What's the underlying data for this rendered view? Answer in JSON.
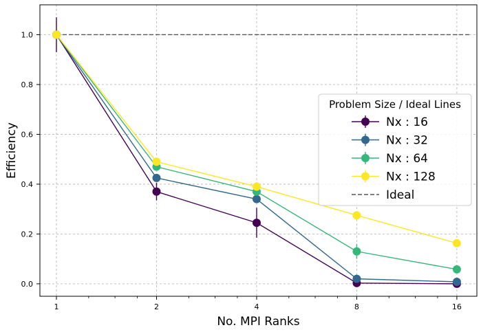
{
  "chart_data": {
    "type": "line",
    "xlabel": "No. MPI Ranks",
    "ylabel": "Efficiency",
    "x_scale": "log2",
    "x": [
      1,
      2,
      4,
      8,
      16
    ],
    "x_tick_labels": [
      "1",
      "2",
      "4",
      "8",
      "16"
    ],
    "ylim": [
      -0.05,
      1.12
    ],
    "y_ticks": [
      0.0,
      0.2,
      0.4,
      0.6,
      0.8,
      1.0
    ],
    "y_tick_labels": [
      "0.0",
      "0.2",
      "0.4",
      "0.6",
      "0.8",
      "1.0"
    ],
    "grid": true,
    "legend": {
      "title": "Problem Size / Ideal Lines",
      "placement": "center-right"
    },
    "series": [
      {
        "name": "Nx : 16",
        "color": "#440154",
        "values": [
          1.0,
          0.37,
          0.245,
          0.003,
          0.0
        ],
        "errors": [
          0.07,
          0.035,
          0.06,
          0.005,
          0.003
        ]
      },
      {
        "name": "Nx : 32",
        "color": "#31688e",
        "values": [
          1.0,
          0.425,
          0.34,
          0.02,
          0.008
        ],
        "errors": [
          0.0,
          0.0,
          0.0,
          0.0,
          0.0
        ]
      },
      {
        "name": "Nx : 64",
        "color": "#35b779",
        "values": [
          1.0,
          0.47,
          0.37,
          0.13,
          0.058
        ],
        "errors": [
          0.0,
          0.0,
          0.0,
          0.03,
          0.0
        ]
      },
      {
        "name": "Nx : 128",
        "color": "#fde725",
        "values": [
          1.0,
          0.49,
          0.39,
          0.275,
          0.163
        ],
        "errors": [
          0.0,
          0.0,
          0.0,
          0.0,
          0.0
        ]
      }
    ],
    "ideal": {
      "name": "Ideal",
      "value": 1.0,
      "x_range": [
        1,
        17.6
      ],
      "color": "#555555"
    }
  }
}
